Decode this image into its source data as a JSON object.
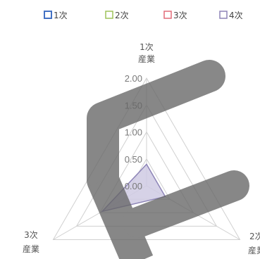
{
  "chart_data": {
    "type": "radar",
    "axes": [
      {
        "label_line1": "1次",
        "label_line2": "産業"
      },
      {
        "label_line1": "2次",
        "label_line2": "産業"
      },
      {
        "label_line1": "3次",
        "label_line2": "産業"
      }
    ],
    "ticks": [
      "0.00",
      "0.50",
      "1.00",
      "1.50",
      "2.00"
    ],
    "tick_values": [
      0,
      0.5,
      1,
      1.5,
      2
    ],
    "rmax": 2,
    "series": [
      {
        "name": "1次",
        "color": "#4472c4",
        "values": [
          0,
          0,
          0
        ]
      },
      {
        "name": "2次",
        "color": "#9dc25a",
        "values": [
          0,
          0,
          0
        ]
      },
      {
        "name": "3次",
        "color": "#e26b79",
        "values": [
          0,
          0,
          0
        ]
      },
      {
        "name": "4次",
        "color": "#8d84b7",
        "fill": "#cfcae3",
        "values": [
          0.4,
          0.4,
          0.95
        ]
      }
    ],
    "legend_position": "top",
    "gridlines": true
  }
}
